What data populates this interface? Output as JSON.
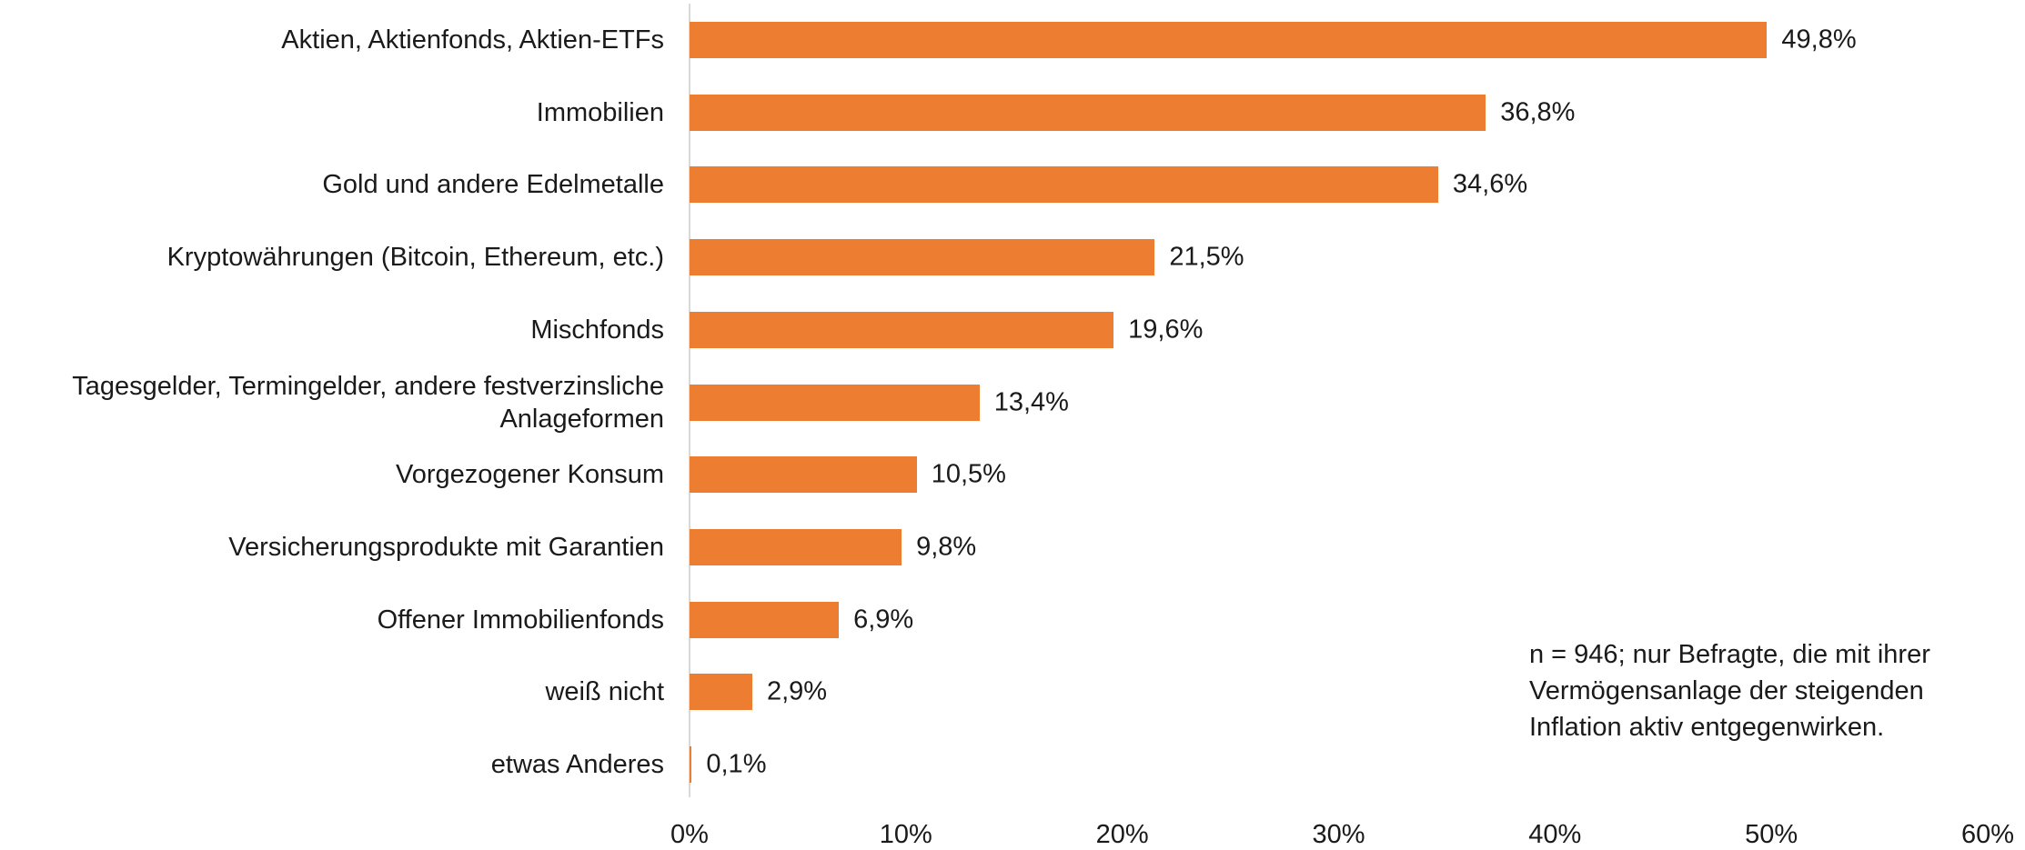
{
  "chart_data": {
    "type": "hbar",
    "categories": [
      "Aktien, Aktienfonds, Aktien-ETFs",
      "Immobilien",
      "Gold und andere Edelmetalle",
      "Kryptowährungen (Bitcoin, Ethereum, etc.)",
      "Mischfonds",
      "Tagesgelder, Termingelder, andere festverzinsliche Anlageformen",
      "Vorgezogener Konsum",
      "Versicherungsprodukte mit Garantien",
      "Offener Immobilienfonds",
      "weiß nicht",
      "etwas Anderes"
    ],
    "values": [
      49.8,
      36.8,
      34.6,
      21.5,
      19.6,
      13.4,
      10.5,
      9.8,
      6.9,
      2.9,
      0.1
    ],
    "value_labels": [
      "49,8%",
      "36,8%",
      "34,6%",
      "21,5%",
      "19,6%",
      "13,4%",
      "10,5%",
      "9,8%",
      "6,9%",
      "2,9%",
      "0,1%"
    ],
    "color": "#ed7d31",
    "xlim": [
      0,
      60
    ],
    "xticks": [
      {
        "value": 0,
        "label": "0%"
      },
      {
        "value": 10,
        "label": "10%"
      },
      {
        "value": 20,
        "label": "20%"
      },
      {
        "value": 30,
        "label": "30%"
      },
      {
        "value": 40,
        "label": "40%"
      },
      {
        "value": 50,
        "label": "50%"
      },
      {
        "value": 60,
        "label": "60%"
      }
    ],
    "annotation": [
      "n = 946; nur Befragte, die mit ihrer",
      "Vermögensanlage der steigenden",
      "Inflation aktiv entgegenwirken."
    ]
  }
}
